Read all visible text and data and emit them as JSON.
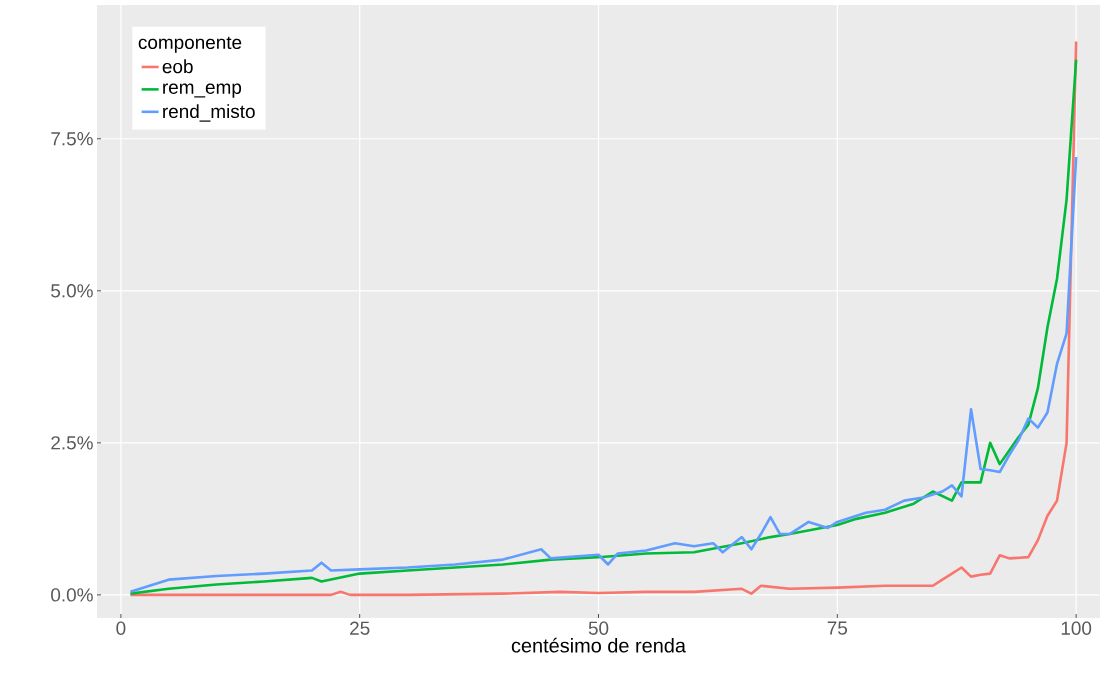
{
  "chart_data": {
    "type": "line",
    "xlabel": "centésimo de renda",
    "legend_title": "componente",
    "legend": "top left",
    "grid": true,
    "line_style": "solid",
    "xlim": [
      -2.5,
      102.5
    ],
    "ylim": [
      -0.38,
      9.7
    ],
    "xticks": [
      0,
      25,
      50,
      75,
      100
    ],
    "yticks": [
      {
        "value": 0,
        "label": "0.0%"
      },
      {
        "value": 2.5,
        "label": "2.5%"
      },
      {
        "value": 5,
        "label": "5.0%"
      },
      {
        "value": 7.5,
        "label": "7.5%"
      }
    ],
    "series": [
      {
        "name": "eob",
        "color": "#f8766d",
        "x": [
          1,
          10,
          20,
          22,
          23,
          24,
          30,
          40,
          46,
          50,
          55,
          60,
          65,
          66,
          67,
          70,
          75,
          80,
          85,
          86,
          87,
          88,
          89,
          90,
          91,
          92,
          93,
          95,
          96,
          97,
          98,
          99,
          100
        ],
        "values": [
          0,
          0,
          0,
          0,
          0.05,
          0,
          0,
          0.02,
          0.05,
          0.03,
          0.05,
          0.05,
          0.1,
          0.02,
          0.15,
          0.1,
          0.12,
          0.15,
          0.15,
          0.25,
          0.35,
          0.45,
          0.3,
          0.33,
          0.35,
          0.65,
          0.6,
          0.62,
          0.9,
          1.3,
          1.55,
          2.5,
          9.1
        ]
      },
      {
        "name": "rem_emp",
        "color": "#00ba38",
        "x": [
          1,
          5,
          10,
          15,
          20,
          21,
          25,
          30,
          35,
          40,
          45,
          50,
          55,
          60,
          65,
          68,
          70,
          75,
          77,
          80,
          83,
          85,
          87,
          88,
          90,
          91,
          92,
          94,
          95,
          96,
          97,
          98,
          99,
          100
        ],
        "values": [
          0.02,
          0.1,
          0.17,
          0.22,
          0.28,
          0.22,
          0.35,
          0.4,
          0.45,
          0.5,
          0.58,
          0.62,
          0.68,
          0.7,
          0.85,
          0.95,
          1.0,
          1.15,
          1.25,
          1.35,
          1.5,
          1.7,
          1.55,
          1.85,
          1.85,
          2.5,
          2.15,
          2.6,
          2.8,
          3.4,
          4.4,
          5.2,
          6.5,
          8.8
        ]
      },
      {
        "name": "rend_misto",
        "color": "#619cff",
        "x": [
          1,
          5,
          10,
          15,
          20,
          21,
          22,
          25,
          30,
          35,
          40,
          44,
          45,
          50,
          51,
          52,
          55,
          58,
          60,
          62,
          63,
          65,
          66,
          67,
          68,
          69,
          70,
          72,
          74,
          75,
          78,
          80,
          82,
          84,
          85,
          86,
          87,
          88,
          89,
          90,
          91,
          92,
          93,
          94,
          95,
          96,
          97,
          98,
          99,
          100
        ],
        "values": [
          0.05,
          0.25,
          0.31,
          0.35,
          0.4,
          0.53,
          0.4,
          0.42,
          0.45,
          0.5,
          0.58,
          0.75,
          0.6,
          0.66,
          0.5,
          0.68,
          0.73,
          0.85,
          0.8,
          0.85,
          0.7,
          0.95,
          0.75,
          1.0,
          1.28,
          1.0,
          1.0,
          1.2,
          1.1,
          1.2,
          1.35,
          1.4,
          1.55,
          1.6,
          1.65,
          1.7,
          1.8,
          1.62,
          3.05,
          2.07,
          2.05,
          2.02,
          2.3,
          2.55,
          2.9,
          2.75,
          3.0,
          3.8,
          4.3,
          7.2
        ]
      }
    ]
  }
}
